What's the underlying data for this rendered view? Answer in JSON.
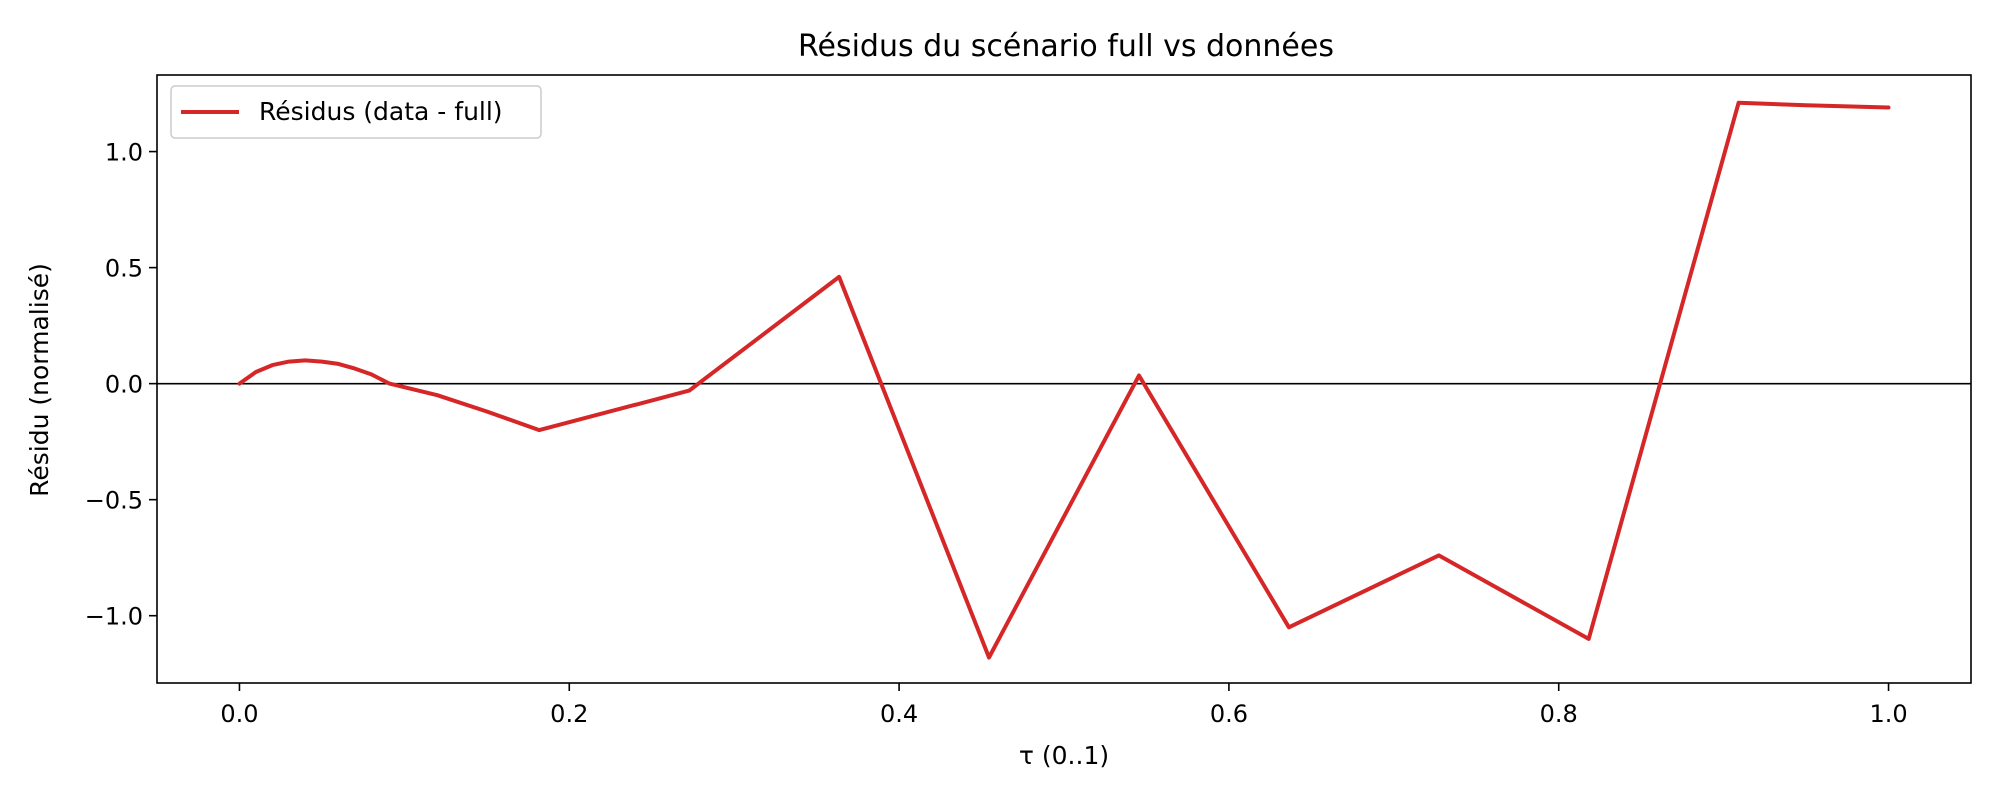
{
  "chart_data": {
    "type": "line",
    "title": "Résidus du scénario full vs données",
    "xlabel": "τ (0..1)",
    "ylabel": "Résidu (normalisé)",
    "xlim": [
      -0.05,
      1.05
    ],
    "ylim": [
      -1.29,
      1.33
    ],
    "x_ticks": [
      0.0,
      0.2,
      0.4,
      0.6,
      0.8,
      1.0
    ],
    "x_tick_labels": [
      "0.0",
      "0.2",
      "0.4",
      "0.6",
      "0.8",
      "1.0"
    ],
    "y_ticks": [
      -1.0,
      -0.5,
      0.0,
      0.5,
      1.0
    ],
    "y_tick_labels": [
      "−1.0",
      "−0.5",
      "0.0",
      "0.5",
      "1.0"
    ],
    "grid": false,
    "zero_line": true,
    "legend": {
      "placement": "top-left",
      "entries": [
        "Résidus (data - full)"
      ]
    },
    "series": [
      {
        "name": "Résidus (data - full)",
        "color": "#d62728",
        "x": [
          0.0,
          0.01,
          0.02,
          0.03,
          0.04,
          0.05,
          0.06,
          0.07,
          0.08,
          0.0909,
          0.12,
          0.15,
          0.1818,
          0.2727,
          0.3636,
          0.4545,
          0.5455,
          0.6364,
          0.7273,
          0.8182,
          0.9091,
          0.95,
          1.0
        ],
        "values": [
          0.0,
          0.05,
          0.08,
          0.095,
          0.1,
          0.095,
          0.085,
          0.065,
          0.04,
          0.0,
          -0.05,
          -0.12,
          -0.2,
          -0.03,
          0.46,
          -1.18,
          0.035,
          -1.05,
          -0.74,
          -1.1,
          1.21,
          1.2,
          1.19
        ]
      }
    ]
  }
}
